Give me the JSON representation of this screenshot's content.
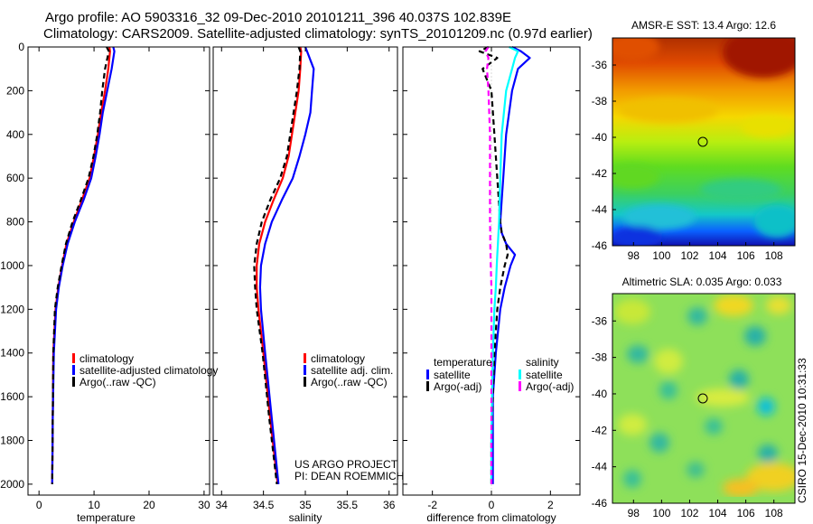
{
  "header": {
    "line1": "Argo profile: AO 5903316_32 09-Dec-2010 20101211_396 40.037S 102.839E",
    "line2": "Climatology: CARS2009. Satellite-adjusted climatology: synTS_20101209.nc (0.97d earlier)"
  },
  "project": {
    "line1": "US ARGO PROJECT",
    "line2": "PI: DEAN ROEMMICH"
  },
  "stamp": "CSIRO 15-Dec-2010 10:31:33",
  "colors": {
    "red": "#ff0000",
    "blue": "#0000ff",
    "black": "#000000",
    "cyan": "#00ffff",
    "magenta": "#ff00ff"
  },
  "chart_data": [
    {
      "type": "line",
      "name": "temperature",
      "xlabel": "temperature",
      "ylabel": "",
      "xlim": [
        -2,
        31
      ],
      "ylim": [
        0,
        2050
      ],
      "xticks": [
        0,
        10,
        20,
        30
      ],
      "yticks": [
        0,
        200,
        400,
        600,
        800,
        1000,
        1200,
        1400,
        1600,
        1800,
        2000
      ],
      "legend": [
        "climatology",
        "satellite-adjusted climatology",
        "Argo(..raw -QC)"
      ],
      "series": [
        {
          "name": "climatology",
          "color": "red",
          "dash": false,
          "x": [
            12.8,
            12.9,
            12.6,
            12.0,
            11.3,
            10.7,
            10.0,
            9.2,
            7.8,
            6.3,
            5.0,
            4.2,
            3.5,
            3.0,
            2.6,
            2.5,
            2.4
          ],
          "y": [
            0,
            20,
            100,
            200,
            300,
            400,
            500,
            600,
            700,
            800,
            900,
            1000,
            1100,
            1200,
            1400,
            1700,
            2000
          ]
        },
        {
          "name": "satellite-adjusted climatology",
          "color": "blue",
          "dash": false,
          "x": [
            13.5,
            13.7,
            13.2,
            12.4,
            11.6,
            11.0,
            10.3,
            9.5,
            8.1,
            6.5,
            5.2,
            4.3,
            3.6,
            3.1,
            2.7,
            2.5,
            2.4
          ],
          "y": [
            0,
            20,
            100,
            200,
            300,
            400,
            500,
            600,
            700,
            800,
            900,
            1000,
            1100,
            1200,
            1400,
            1700,
            2000
          ]
        },
        {
          "name": "Argo(..raw -QC)",
          "color": "black",
          "dash": true,
          "x": [
            12.3,
            12.7,
            12.0,
            11.5,
            11.1,
            10.6,
            9.9,
            9.0,
            7.6,
            6.1,
            4.9,
            4.1,
            3.4,
            2.9,
            2.6,
            2.5,
            2.4
          ],
          "y": [
            0,
            20,
            100,
            200,
            300,
            400,
            500,
            600,
            700,
            800,
            900,
            1000,
            1100,
            1200,
            1400,
            1700,
            2000
          ]
        }
      ]
    },
    {
      "type": "line",
      "name": "salinity",
      "xlabel": "salinity",
      "xlim": [
        33.9,
        36.1
      ],
      "ylim": [
        0,
        2050
      ],
      "xticks": [
        34,
        34.5,
        35,
        35.5,
        36
      ],
      "yticks": [
        0,
        200,
        400,
        600,
        800,
        1000,
        1200,
        1400,
        1600,
        1800,
        2000
      ],
      "legend": [
        "climatology",
        "satellite adj. clim.",
        "Argo(..raw -QC)"
      ],
      "series": [
        {
          "name": "climatology",
          "color": "red",
          "dash": false,
          "x": [
            34.94,
            34.95,
            34.94,
            34.92,
            34.88,
            34.84,
            34.8,
            34.73,
            34.62,
            34.52,
            34.45,
            34.42,
            34.42,
            34.44,
            34.5,
            34.58,
            34.67
          ],
          "y": [
            0,
            20,
            100,
            200,
            300,
            400,
            500,
            600,
            700,
            800,
            900,
            1000,
            1100,
            1200,
            1400,
            1700,
            2000
          ]
        },
        {
          "name": "satellite adj. clim.",
          "color": "blue",
          "dash": false,
          "x": [
            35.0,
            35.02,
            35.1,
            35.08,
            35.06,
            35.0,
            34.93,
            34.85,
            34.72,
            34.6,
            34.52,
            34.47,
            34.46,
            34.47,
            34.52,
            34.6,
            34.68
          ],
          "y": [
            0,
            20,
            100,
            200,
            300,
            400,
            500,
            600,
            700,
            800,
            900,
            1000,
            1100,
            1200,
            1400,
            1700,
            2000
          ]
        },
        {
          "name": "Argo(..raw -QC)",
          "color": "black",
          "dash": true,
          "x": [
            34.92,
            34.94,
            34.93,
            34.9,
            34.86,
            34.82,
            34.78,
            34.7,
            34.58,
            34.48,
            34.42,
            34.39,
            34.4,
            34.42,
            34.49,
            34.57,
            34.66
          ],
          "y": [
            0,
            20,
            100,
            200,
            300,
            400,
            500,
            600,
            700,
            800,
            900,
            1000,
            1100,
            1200,
            1400,
            1700,
            2000
          ]
        }
      ]
    },
    {
      "type": "line",
      "name": "difference",
      "xlabel": "difference from climatology",
      "xlim": [
        -3.0,
        3.0
      ],
      "ylim": [
        0,
        2050
      ],
      "xticks": [
        -2,
        0,
        2
      ],
      "yticks": [
        0,
        200,
        400,
        600,
        800,
        1000,
        1200,
        1400,
        1600,
        1800,
        2000
      ],
      "legend_titles": [
        "temperature",
        "salinity"
      ],
      "legend": [
        "satellite",
        "Argo(-adj)",
        "satellite",
        "Argo(-adj)"
      ],
      "series": [
        {
          "name": "temperature satellite",
          "color": "blue",
          "dash": false,
          "x": [
            0.7,
            1.0,
            1.3,
            0.9,
            0.7,
            0.5,
            0.4,
            0.35,
            0.3,
            0.35,
            0.5,
            0.8,
            0.65,
            0.45,
            0.3,
            0.15,
            0.05,
            0.05,
            0.05
          ],
          "y": [
            0,
            20,
            50,
            100,
            200,
            400,
            600,
            700,
            800,
            850,
            900,
            950,
            1000,
            1100,
            1200,
            1400,
            1600,
            1800,
            2000
          ]
        },
        {
          "name": "temperature Argo(-adj)",
          "color": "black",
          "dash": true,
          "x": [
            -0.1,
            -0.4,
            0.2,
            -0.3,
            0.0,
            0.1,
            0.2,
            0.25,
            0.3,
            0.35,
            0.5,
            0.55,
            0.45,
            0.3,
            0.2,
            0.1,
            0.05,
            0.0,
            0.0
          ],
          "y": [
            0,
            20,
            50,
            100,
            200,
            400,
            600,
            700,
            800,
            850,
            900,
            950,
            1000,
            1100,
            1200,
            1400,
            1600,
            1800,
            2000
          ]
        },
        {
          "name": "salinity satellite",
          "color": "cyan",
          "dash": false,
          "x": [
            0.6,
            0.9,
            0.8,
            0.7,
            0.5,
            0.35,
            0.3,
            0.28,
            0.26,
            0.24,
            0.22,
            0.2,
            0.18,
            0.15,
            0.1,
            0.05,
            0.02,
            0.0,
            0.0
          ],
          "y": [
            0,
            20,
            50,
            100,
            200,
            400,
            600,
            700,
            800,
            850,
            900,
            950,
            1000,
            1100,
            1200,
            1400,
            1600,
            1800,
            2000
          ]
        },
        {
          "name": "salinity Argo(-adj)",
          "color": "magenta",
          "dash": true,
          "x": [
            -0.1,
            -0.2,
            -0.1,
            -0.15,
            -0.1,
            -0.05,
            -0.05,
            -0.05,
            -0.05,
            -0.04,
            -0.04,
            -0.03,
            -0.02,
            0.0,
            0.0,
            0.0,
            0.0,
            0.0,
            0.0
          ],
          "y": [
            0,
            20,
            50,
            100,
            200,
            400,
            600,
            700,
            800,
            850,
            900,
            950,
            1000,
            1100,
            1200,
            1400,
            1600,
            1800,
            2000
          ]
        }
      ]
    },
    {
      "type": "heatmap",
      "name": "sst_map",
      "title": "AMSR-E SST: 13.4 Argo: 12.6",
      "xlim": [
        96.5,
        109.5
      ],
      "ylim": [
        -46,
        -34.5
      ],
      "xticks": [
        98,
        100,
        102,
        104,
        106,
        108
      ],
      "yticks": [
        -36,
        -38,
        -40,
        -42,
        -44,
        -46
      ],
      "marker": {
        "lon": 102.8,
        "lat": -40.0
      }
    },
    {
      "type": "heatmap",
      "name": "sla_map",
      "title": "Altimetric SLA: 0.035 Argo: 0.033",
      "xlim": [
        96.5,
        109.5
      ],
      "ylim": [
        -46,
        -34.5
      ],
      "xticks": [
        98,
        100,
        102,
        104,
        106,
        108
      ],
      "yticks": [
        -36,
        -38,
        -40,
        -42,
        -44,
        -46
      ],
      "marker": {
        "lon": 102.8,
        "lat": -40.0
      }
    }
  ]
}
